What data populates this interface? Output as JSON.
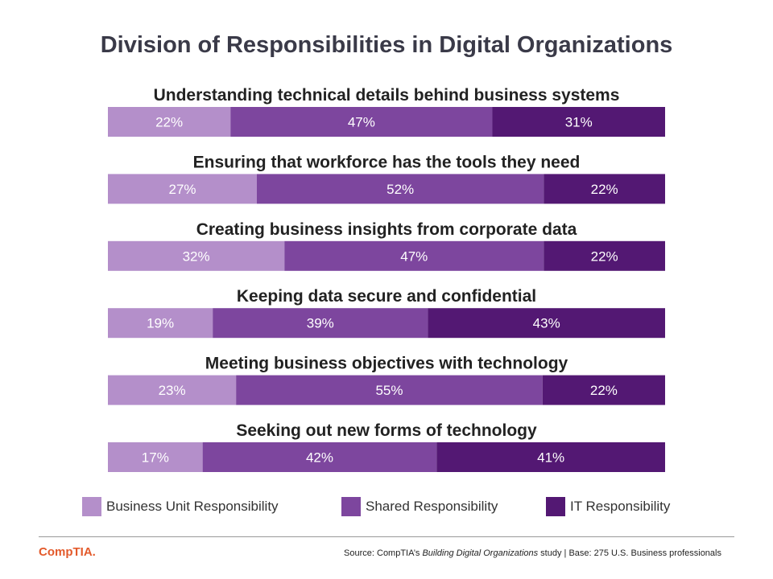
{
  "title": "Division of Responsibilities in Digital Organizations",
  "colors": {
    "business_unit": "#b48fca",
    "shared": "#7d469e",
    "it": "#531873",
    "logo": "#e35a2b"
  },
  "chart_data": {
    "type": "bar",
    "orientation": "horizontal",
    "stacked": true,
    "title": "Division of Responsibilities in Digital Organizations",
    "categories": [
      "Understanding technical details behind business systems",
      "Ensuring that workforce has the tools they need",
      "Creating business insights from corporate data",
      "Keeping data secure and confidential",
      "Meeting business objectives with technology",
      "Seeking out new forms of technology"
    ],
    "series": [
      {
        "name": "Business Unit Responsibility",
        "color": "#b48fca",
        "values": [
          22,
          27,
          32,
          19,
          23,
          17
        ],
        "labels": [
          "22%",
          "27%",
          "32%",
          "19%",
          "23%",
          "17%"
        ]
      },
      {
        "name": "Shared Responsibility",
        "color": "#7d469e",
        "values": [
          47,
          52,
          47,
          39,
          55,
          42
        ],
        "labels": [
          "47%",
          "52%",
          "47%",
          "39%",
          "55%",
          "42%"
        ]
      },
      {
        "name": "IT Responsibility",
        "color": "#531873",
        "values": [
          31,
          22,
          22,
          43,
          22,
          41
        ],
        "labels": [
          "31%",
          "22%",
          "22%",
          "43%",
          "22%",
          "41%"
        ]
      }
    ],
    "legend_position": "bottom",
    "grid": false
  },
  "legend": {
    "items": [
      {
        "label": "Business Unit Responsibility",
        "color": "#b48fca"
      },
      {
        "label": "Shared Responsibility",
        "color": "#7d469e"
      },
      {
        "label": "IT Responsibility",
        "color": "#531873"
      }
    ]
  },
  "footer": {
    "logo_text": "CompTIA.",
    "source_prefix": "Source: CompTIA’s ",
    "source_study": "Building Digital Organizations",
    "source_suffix": " study | Base: 275 U.S. Business professionals"
  }
}
